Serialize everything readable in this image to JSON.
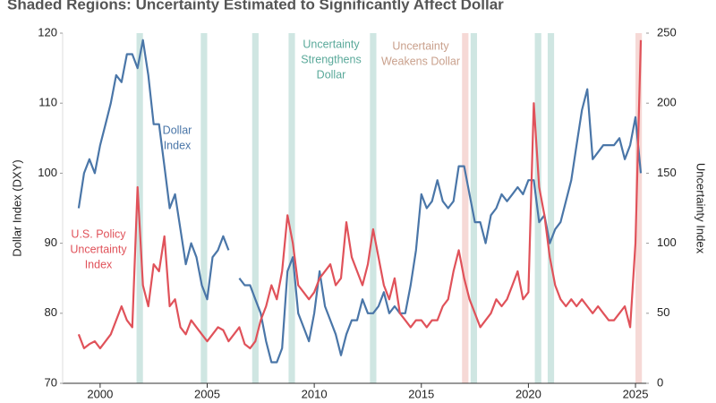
{
  "chart_data": {
    "type": "line",
    "title": "Shaded Regions: Uncertainty Estimated to Significantly Affect Dollar",
    "y_label": "Dollar Index (DXY)",
    "y2_label": "Uncertainty Index",
    "xlim": [
      1998.25,
      2025.5
    ],
    "xticks": [
      2000,
      2005,
      2010,
      2015,
      2020,
      2025
    ],
    "ylim": [
      70,
      120
    ],
    "yticks": [
      70,
      80,
      90,
      100,
      110,
      120
    ],
    "y2lim": [
      0,
      250
    ],
    "y2ticks": [
      0,
      50,
      100,
      150,
      200,
      250
    ],
    "x": [
      1999,
      1999.25,
      1999.5,
      1999.75,
      2000,
      2000.25,
      2000.5,
      2000.75,
      2001,
      2001.25,
      2001.5,
      2001.75,
      2002,
      2002.25,
      2002.5,
      2002.75,
      2003,
      2003.25,
      2003.5,
      2003.75,
      2004,
      2004.25,
      2004.5,
      2004.75,
      2005,
      2005.25,
      2005.5,
      2005.75,
      2006,
      2006.25,
      2006.5,
      2006.75,
      2007,
      2007.25,
      2007.5,
      2007.75,
      2008,
      2008.25,
      2008.5,
      2008.75,
      2009,
      2009.25,
      2009.5,
      2009.75,
      2010,
      2010.25,
      2010.5,
      2010.75,
      2011,
      2011.25,
      2011.5,
      2011.75,
      2012,
      2012.25,
      2012.5,
      2012.75,
      2013,
      2013.25,
      2013.5,
      2013.75,
      2014,
      2014.25,
      2014.5,
      2014.75,
      2015,
      2015.25,
      2015.5,
      2015.75,
      2016,
      2016.25,
      2016.5,
      2016.75,
      2017,
      2017.25,
      2017.5,
      2017.75,
      2018,
      2018.25,
      2018.5,
      2018.75,
      2019,
      2019.25,
      2019.5,
      2019.75,
      2020,
      2020.25,
      2020.5,
      2020.75,
      2021,
      2021.25,
      2021.5,
      2021.75,
      2022,
      2022.25,
      2022.5,
      2022.75,
      2023,
      2023.25,
      2023.5,
      2023.75,
      2024,
      2024.25,
      2024.5,
      2024.75,
      2025,
      2025.25
    ],
    "series": [
      {
        "name": "Dollar Index",
        "color": "#4a76a8",
        "axis": "y",
        "values": [
          95,
          100,
          102,
          100,
          104,
          107,
          110,
          114,
          113,
          117,
          117,
          115,
          119,
          114,
          107,
          107,
          101,
          95,
          97,
          92,
          87,
          90,
          88,
          84,
          82,
          88,
          89,
          91,
          89,
          null,
          85,
          84,
          84,
          82,
          80,
          76,
          73,
          73,
          75,
          86,
          88,
          80,
          78,
          76,
          80,
          86,
          81,
          79,
          77,
          74,
          77,
          79,
          79,
          82,
          80,
          80,
          81,
          83,
          80,
          81,
          80,
          80,
          84,
          89,
          97,
          95,
          96,
          99,
          96,
          95,
          96,
          101,
          101,
          97,
          93,
          93,
          90,
          94,
          95,
          97,
          96,
          97,
          98,
          97,
          99,
          99,
          93,
          94,
          90,
          92,
          93,
          96,
          99,
          104,
          109,
          112,
          102,
          103,
          104,
          104,
          104,
          105,
          102,
          104,
          108,
          100
        ]
      },
      {
        "name": "U.S. Policy Uncertainty Index",
        "color": "#e0525a",
        "axis": "y2",
        "values": [
          35,
          25,
          28,
          30,
          25,
          30,
          35,
          45,
          55,
          45,
          40,
          140,
          70,
          55,
          85,
          80,
          105,
          55,
          60,
          40,
          35,
          45,
          40,
          35,
          30,
          35,
          40,
          38,
          30,
          35,
          40,
          28,
          25,
          30,
          45,
          55,
          70,
          60,
          80,
          120,
          100,
          70,
          65,
          60,
          65,
          75,
          80,
          85,
          70,
          75,
          115,
          90,
          80,
          70,
          85,
          110,
          90,
          70,
          60,
          75,
          50,
          45,
          40,
          45,
          45,
          40,
          45,
          45,
          55,
          60,
          80,
          95,
          75,
          60,
          50,
          40,
          45,
          50,
          60,
          55,
          60,
          70,
          80,
          60,
          65,
          200,
          140,
          120,
          90,
          70,
          60,
          55,
          60,
          55,
          60,
          55,
          50,
          55,
          50,
          45,
          45,
          50,
          55,
          40,
          100,
          245
        ]
      }
    ],
    "regions": [
      {
        "start": 2001.7,
        "end": 2002.0,
        "color": "#cfe6e2"
      },
      {
        "start": 2004.7,
        "end": 2005.0,
        "color": "#cfe6e2"
      },
      {
        "start": 2007.1,
        "end": 2007.4,
        "color": "#cfe6e2"
      },
      {
        "start": 2008.8,
        "end": 2009.1,
        "color": "#cfe6e2"
      },
      {
        "start": 2012.6,
        "end": 2012.9,
        "color": "#cfe6e2"
      },
      {
        "start": 2016.9,
        "end": 2017.2,
        "color": "#f6d9d6"
      },
      {
        "start": 2017.3,
        "end": 2017.6,
        "color": "#cfe6e2"
      },
      {
        "start": 2020.3,
        "end": 2020.6,
        "color": "#cfe6e2"
      },
      {
        "start": 2020.9,
        "end": 2021.2,
        "color": "#cfe6e2"
      },
      {
        "start": 2025.0,
        "end": 2025.3,
        "color": "#f6d9d6"
      }
    ],
    "annotations": [
      {
        "lines": [
          "Dollar",
          "Index"
        ],
        "color": "#4a76a8"
      },
      {
        "lines": [
          "U.S. Policy",
          "Uncertainty",
          "Index"
        ],
        "color": "#e0525a"
      },
      {
        "lines": [
          "Uncertainty",
          "Strengthens",
          "Dollar"
        ],
        "color": "#5aa99a"
      },
      {
        "lines": [
          "Uncertainty",
          "Weakens Dollar"
        ],
        "color": "#c9a08c"
      }
    ]
  }
}
